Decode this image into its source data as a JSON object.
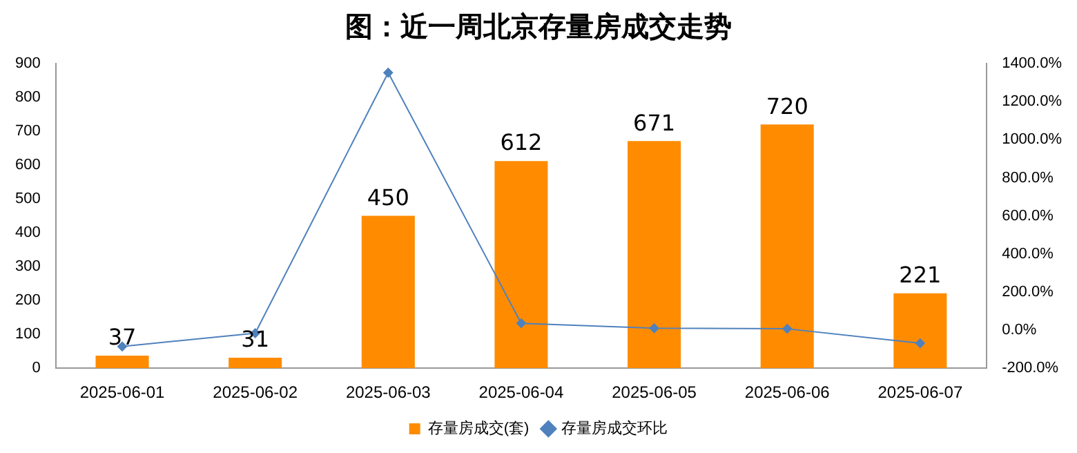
{
  "chart_data": {
    "type": "bar",
    "title": "图：近一周北京存量房成交走势",
    "categories": [
      "2025-06-01",
      "2025-06-02",
      "2025-06-03",
      "2025-06-04",
      "2025-06-05",
      "2025-06-06",
      "2025-06-07"
    ],
    "series": [
      {
        "name": "存量房成交(套)",
        "color": "#ff8c00",
        "values": [
          37,
          31,
          450,
          612,
          671,
          720,
          221
        ],
        "value_labels": [
          "37",
          "31",
          "450",
          "612",
          "671",
          "720",
          "221"
        ]
      },
      {
        "name": "存量房成交环比",
        "type": "line",
        "axis": "y2",
        "color": "#4f81bd",
        "marker": "diamond",
        "values": [
          -86,
          -16,
          1352,
          36,
          10,
          7,
          -69
        ]
      }
    ],
    "ylim": [
      0,
      900
    ],
    "yticks": [
      0,
      100,
      200,
      300,
      400,
      500,
      600,
      700,
      800,
      900
    ],
    "y2lim": [
      -200,
      1400
    ],
    "y2ticks": [
      {
        "value": -200,
        "label": "-200.0%"
      },
      {
        "value": 0,
        "label": "0.0%"
      },
      {
        "value": 200,
        "label": "200.0%"
      },
      {
        "value": 400,
        "label": "400.0%"
      },
      {
        "value": 600,
        "label": "600.0%"
      },
      {
        "value": 800,
        "label": "800.0%"
      },
      {
        "value": 1000,
        "label": "1000.0%"
      },
      {
        "value": 1200,
        "label": "1200.0%"
      },
      {
        "value": 1400,
        "label": "1400.0%"
      }
    ],
    "grid": false,
    "legend": "bottom"
  }
}
